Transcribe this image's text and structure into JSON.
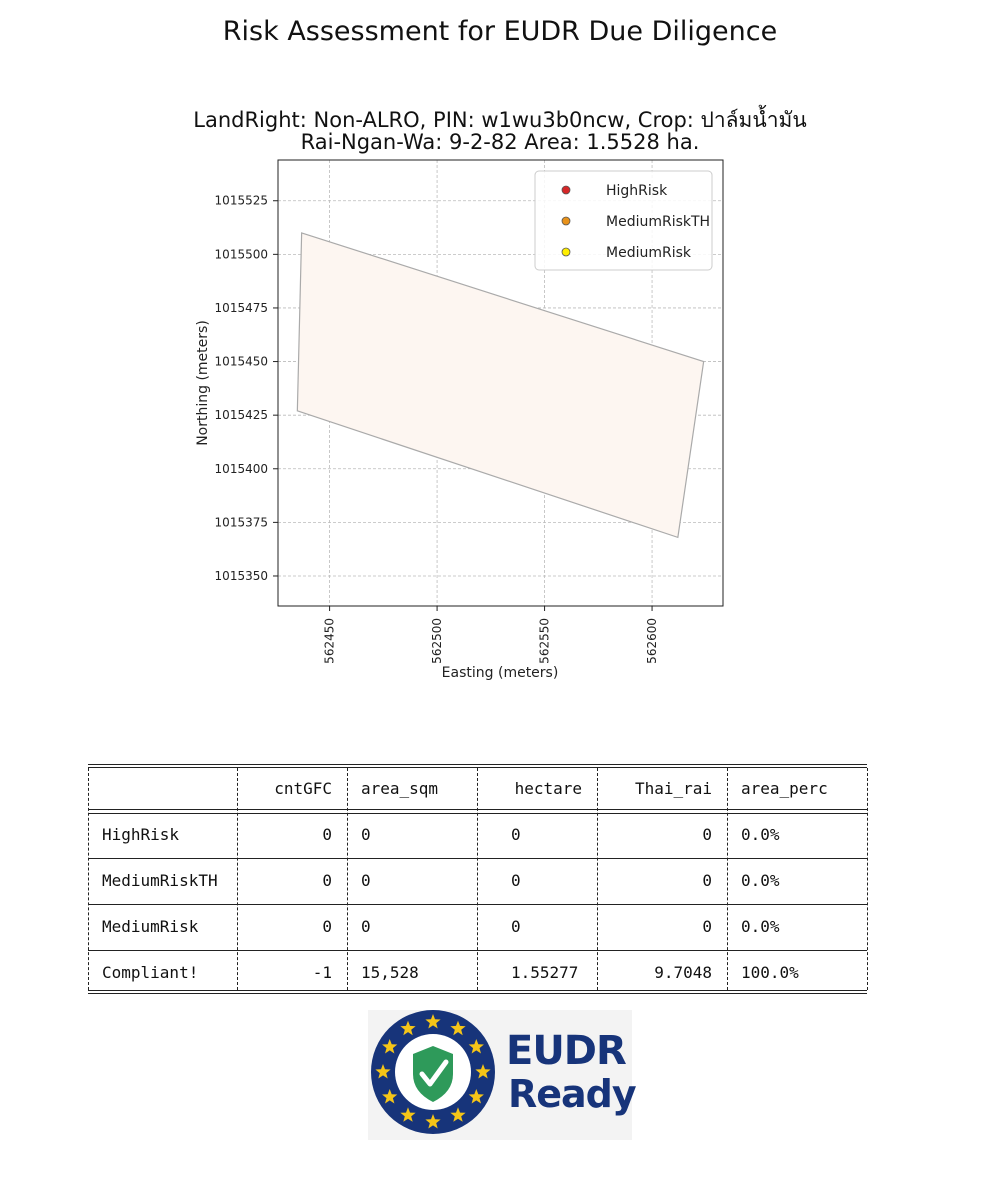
{
  "page": {
    "title": "Risk Assessment for EUDR Due Diligence",
    "subtitle_line1": "LandRight: Non-ALRO,  PIN: w1wu3b0ncw,  Crop: ปาล์มน้ำมัน",
    "subtitle_line2": "Rai-Ngan-Wa: 9-2-82    Area: 1.5528 ha."
  },
  "chart_data": {
    "type": "area",
    "title": "",
    "xlabel": "Easting (meters)",
    "ylabel": "Northing (meters)",
    "xlim": [
      562426,
      562633
    ],
    "ylim": [
      1015336,
      1015544
    ],
    "x_ticks": [
      562450,
      562500,
      562550,
      562600
    ],
    "y_ticks": [
      1015350,
      1015375,
      1015400,
      1015425,
      1015450,
      1015475,
      1015500,
      1015525
    ],
    "grid": true,
    "legend_position": "top-right",
    "legend": [
      {
        "label": "HighRisk",
        "color": "#d62728"
      },
      {
        "label": "MediumRiskTH",
        "color": "#e8921b"
      },
      {
        "label": "MediumRisk",
        "color": "#ffee00"
      }
    ],
    "polygon": [
      [
        562437,
        1015510
      ],
      [
        562624,
        1015450
      ],
      [
        562612,
        1015368
      ],
      [
        562435,
        1015427
      ]
    ],
    "polygon_fill": "#fdf6f1",
    "polygon_stroke": "#aaaaaa"
  },
  "table": {
    "columns": [
      "",
      "cntGFC",
      "area_sqm",
      "hectare",
      "Thai_rai",
      "area_perc"
    ],
    "rows": [
      [
        "HighRisk",
        "0",
        "0",
        "0",
        "0",
        "0.0%"
      ],
      [
        "MediumRiskTH",
        "0",
        "0",
        "0",
        "0",
        "0.0%"
      ],
      [
        "MediumRisk",
        "0",
        "0",
        "0",
        "0",
        "0.0%"
      ],
      [
        "Compliant!",
        "-1",
        "15,528",
        "1.55277",
        "9.7048",
        "100.0%"
      ]
    ]
  },
  "logo": {
    "line1": "EUDR",
    "line2": "Ready",
    "ring_color": "#17347a",
    "star_color": "#f5c518",
    "shield_color": "#2e9a5a"
  }
}
